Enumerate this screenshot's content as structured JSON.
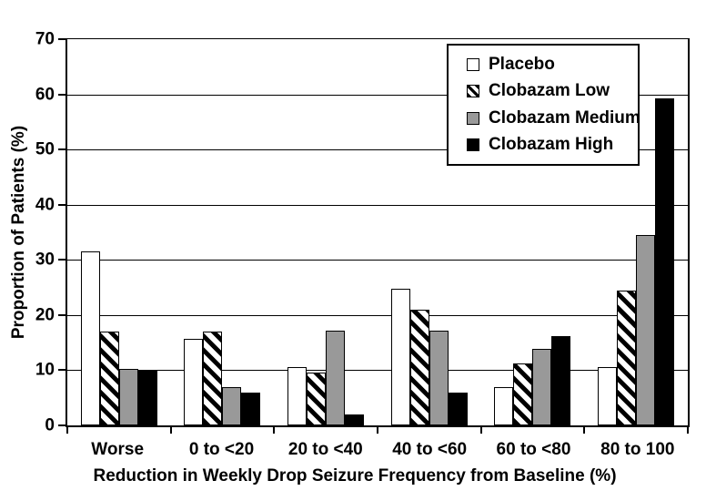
{
  "chart_data": {
    "type": "bar",
    "title": "",
    "xlabel": "Reduction in Weekly Drop Seizure Frequency from Baseline (%)",
    "ylabel": "Proportion of Patients (%)",
    "ylim": [
      0,
      70
    ],
    "yticks": [
      0,
      10,
      20,
      30,
      40,
      50,
      60,
      70
    ],
    "grid": true,
    "legend_position": "top-right",
    "categories": [
      "Worse",
      "0 to <20",
      "20 to <40",
      "40 to <60",
      "60 to <80",
      "80 to 100"
    ],
    "series": [
      {
        "name": "Placebo",
        "fill": "#ffffff",
        "pattern": "solid",
        "values": [
          31.6,
          15.7,
          10.5,
          24.7,
          7.0,
          10.5
        ]
      },
      {
        "name": "Clobazam Low",
        "fill": "hatch",
        "pattern": "diagonal-hatch",
        "values": [
          17.0,
          17.0,
          9.5,
          20.9,
          11.2,
          24.5
        ]
      },
      {
        "name": "Clobazam Medium",
        "fill": "#999999",
        "pattern": "solid",
        "values": [
          10.3,
          7.0,
          17.2,
          17.2,
          13.8,
          34.5
        ]
      },
      {
        "name": "Clobazam High",
        "fill": "#000000",
        "pattern": "solid",
        "values": [
          10.1,
          6.0,
          2.0,
          6.0,
          16.2,
          59.3
        ]
      }
    ],
    "colors": {
      "axis": "#000000",
      "gridline": "#000000",
      "bar_border": "#000000",
      "background": "#ffffff"
    }
  }
}
